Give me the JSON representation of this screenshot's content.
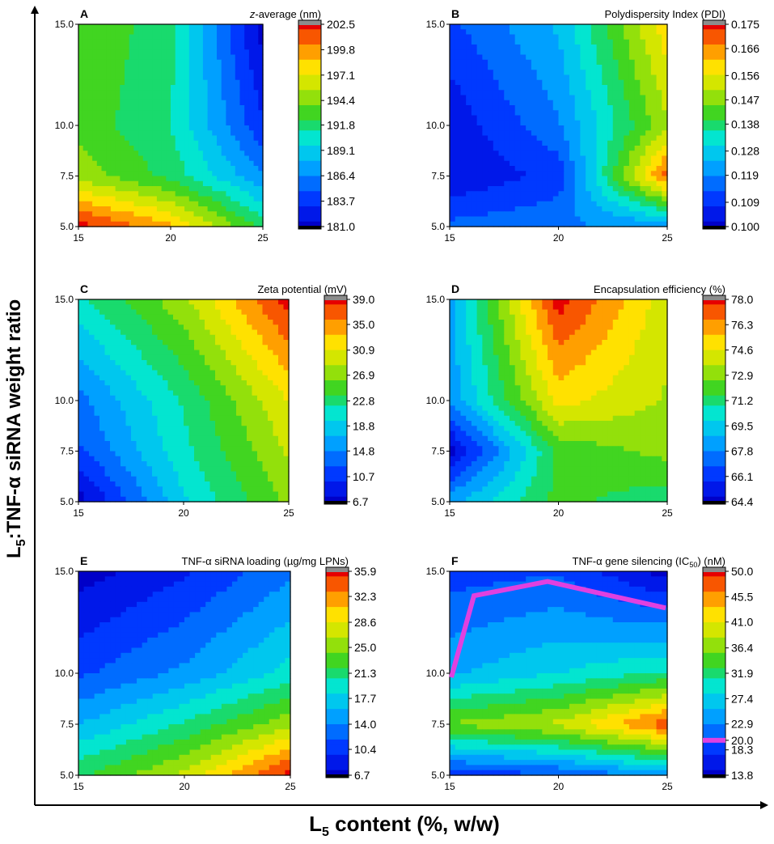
{
  "figure": {
    "x_axis_label": {
      "prefix": "L",
      "sub": "5",
      "suffix": " content (%, w/w)"
    },
    "y_axis_label": {
      "prefix": "L",
      "sub": "5",
      "suffix": ":TNF-α siRNA weight ratio"
    }
  },
  "chart_data": [
    {
      "type": "heatmap",
      "panel": "A",
      "title": "z-average (nm)",
      "title_italic_part": "z",
      "x_ticks": [
        "15",
        "20",
        "25"
      ],
      "y_ticks": [
        "5.0",
        "7.5",
        "10.0",
        "15.0"
      ],
      "x_values": [
        15,
        20,
        25
      ],
      "y_values": [
        5,
        7.5,
        10,
        15
      ],
      "xlim": [
        15,
        25
      ],
      "colorbar_ticks": [
        "202.5",
        "199.8",
        "197.1",
        "194.4",
        "191.8",
        "189.1",
        "186.4",
        "183.7",
        "181.0"
      ],
      "range": [
        181.0,
        202.5
      ],
      "z": [
        [
          202.5,
          199.0,
          192.0
        ],
        [
          195.0,
          192.0,
          186.5
        ],
        [
          193.5,
          191.0,
          183.5
        ],
        [
          194.0,
          191.5,
          181.0
        ]
      ]
    },
    {
      "type": "heatmap",
      "panel": "B",
      "title": "Polydispersity Index (PDI)",
      "x_ticks": [
        "15",
        "20",
        "25"
      ],
      "y_ticks": [
        "5.0",
        "7.5",
        "10.0",
        "15.0"
      ],
      "x_values": [
        15,
        20,
        25
      ],
      "y_values": [
        5,
        7.5,
        10,
        15
      ],
      "xlim": [
        15,
        25
      ],
      "colorbar_ticks": [
        "0.175",
        "0.166",
        "0.156",
        "0.147",
        "0.138",
        "0.128",
        "0.119",
        "0.109",
        "0.100"
      ],
      "range": [
        0.1,
        0.175
      ],
      "z": [
        [
          0.115,
          0.118,
          0.12
        ],
        [
          0.103,
          0.11,
          0.17
        ],
        [
          0.104,
          0.118,
          0.15
        ],
        [
          0.112,
          0.125,
          0.16
        ]
      ]
    },
    {
      "type": "heatmap",
      "panel": "C",
      "title": "Zeta potential (mV)",
      "x_ticks": [
        "15",
        "20",
        "25"
      ],
      "y_ticks": [
        "5.0",
        "7.5",
        "10.0",
        "15.0"
      ],
      "x_values": [
        15,
        20,
        25
      ],
      "y_values": [
        5,
        7.5,
        10,
        15
      ],
      "xlim": [
        15,
        25
      ],
      "colorbar_ticks": [
        "39.0",
        "35.0",
        "30.9",
        "26.9",
        "22.8",
        "18.8",
        "14.8",
        "10.7",
        "6.7"
      ],
      "range": [
        6.7,
        39.0
      ],
      "z": [
        [
          6.7,
          19.0,
          27.0
        ],
        [
          12.0,
          21.0,
          29.0
        ],
        [
          14.0,
          22.0,
          31.0
        ],
        [
          21.0,
          28.0,
          39.0
        ]
      ]
    },
    {
      "type": "heatmap",
      "panel": "D",
      "title": "Encapsulation efficiency (%)",
      "x_ticks": [
        "15",
        "20",
        "25"
      ],
      "y_ticks": [
        "5.0",
        "7.5",
        "10.0",
        "15.0"
      ],
      "x_values": [
        15,
        20,
        25
      ],
      "y_values": [
        5,
        7.5,
        10,
        15
      ],
      "xlim": [
        15,
        25
      ],
      "colorbar_ticks": [
        "78.0",
        "76.3",
        "74.6",
        "72.9",
        "71.2",
        "69.5",
        "67.8",
        "66.1",
        "64.4"
      ],
      "range": [
        64.4,
        78.0
      ],
      "z": [
        [
          68.5,
          72.0,
          71.0
        ],
        [
          64.4,
          72.0,
          73.0
        ],
        [
          68.0,
          75.0,
          73.5
        ],
        [
          68.5,
          78.0,
          74.0
        ]
      ]
    },
    {
      "type": "heatmap",
      "panel": "E",
      "title": "TNF-α siRNA loading (µg/mg LPNs)",
      "x_ticks": [
        "15",
        "20",
        "25"
      ],
      "y_ticks": [
        "5.0",
        "7.5",
        "10.0",
        "15.0"
      ],
      "x_values": [
        15,
        20,
        25
      ],
      "y_values": [
        5,
        7.5,
        10,
        15
      ],
      "xlim": [
        15,
        25
      ],
      "colorbar_ticks": [
        "35.9",
        "32.3",
        "28.6",
        "25.0",
        "21.3",
        "17.7",
        "14.0",
        "10.4",
        "6.7"
      ],
      "range": [
        6.7,
        35.9
      ],
      "z": [
        [
          22.0,
          27.0,
          35.9
        ],
        [
          16.0,
          20.5,
          26.0
        ],
        [
          11.5,
          14.5,
          19.0
        ],
        [
          6.7,
          9.5,
          13.5
        ]
      ]
    },
    {
      "type": "heatmap",
      "panel": "F",
      "title": "TNF-α gene silencing (IC",
      "title_sub": "50",
      "title_tail": ") (nM)",
      "x_ticks": [
        "15",
        "20",
        "25"
      ],
      "y_ticks": [
        "5.0",
        "7.5",
        "10.0",
        "15.0"
      ],
      "x_values": [
        15,
        20,
        25
      ],
      "y_values": [
        5,
        7.5,
        10,
        15
      ],
      "xlim": [
        15,
        25
      ],
      "colorbar_ticks": [
        "50.0",
        "45.5",
        "41.0",
        "36.4",
        "31.9",
        "27.4",
        "22.9",
        "20.0",
        "18.3",
        "13.8"
      ],
      "colorbar_values": [
        50.0,
        45.5,
        41.0,
        36.4,
        31.9,
        27.4,
        22.9,
        20.0,
        18.3,
        13.8
      ],
      "highlight_level": 20.0,
      "highlight_color": "#e040e0",
      "range": [
        13.8,
        50.0
      ],
      "z": [
        [
          18.0,
          20.0,
          24.0
        ],
        [
          36.0,
          39.0,
          48.0
        ],
        [
          25.0,
          28.0,
          31.0
        ],
        [
          19.0,
          20.0,
          13.8
        ]
      ]
    }
  ]
}
